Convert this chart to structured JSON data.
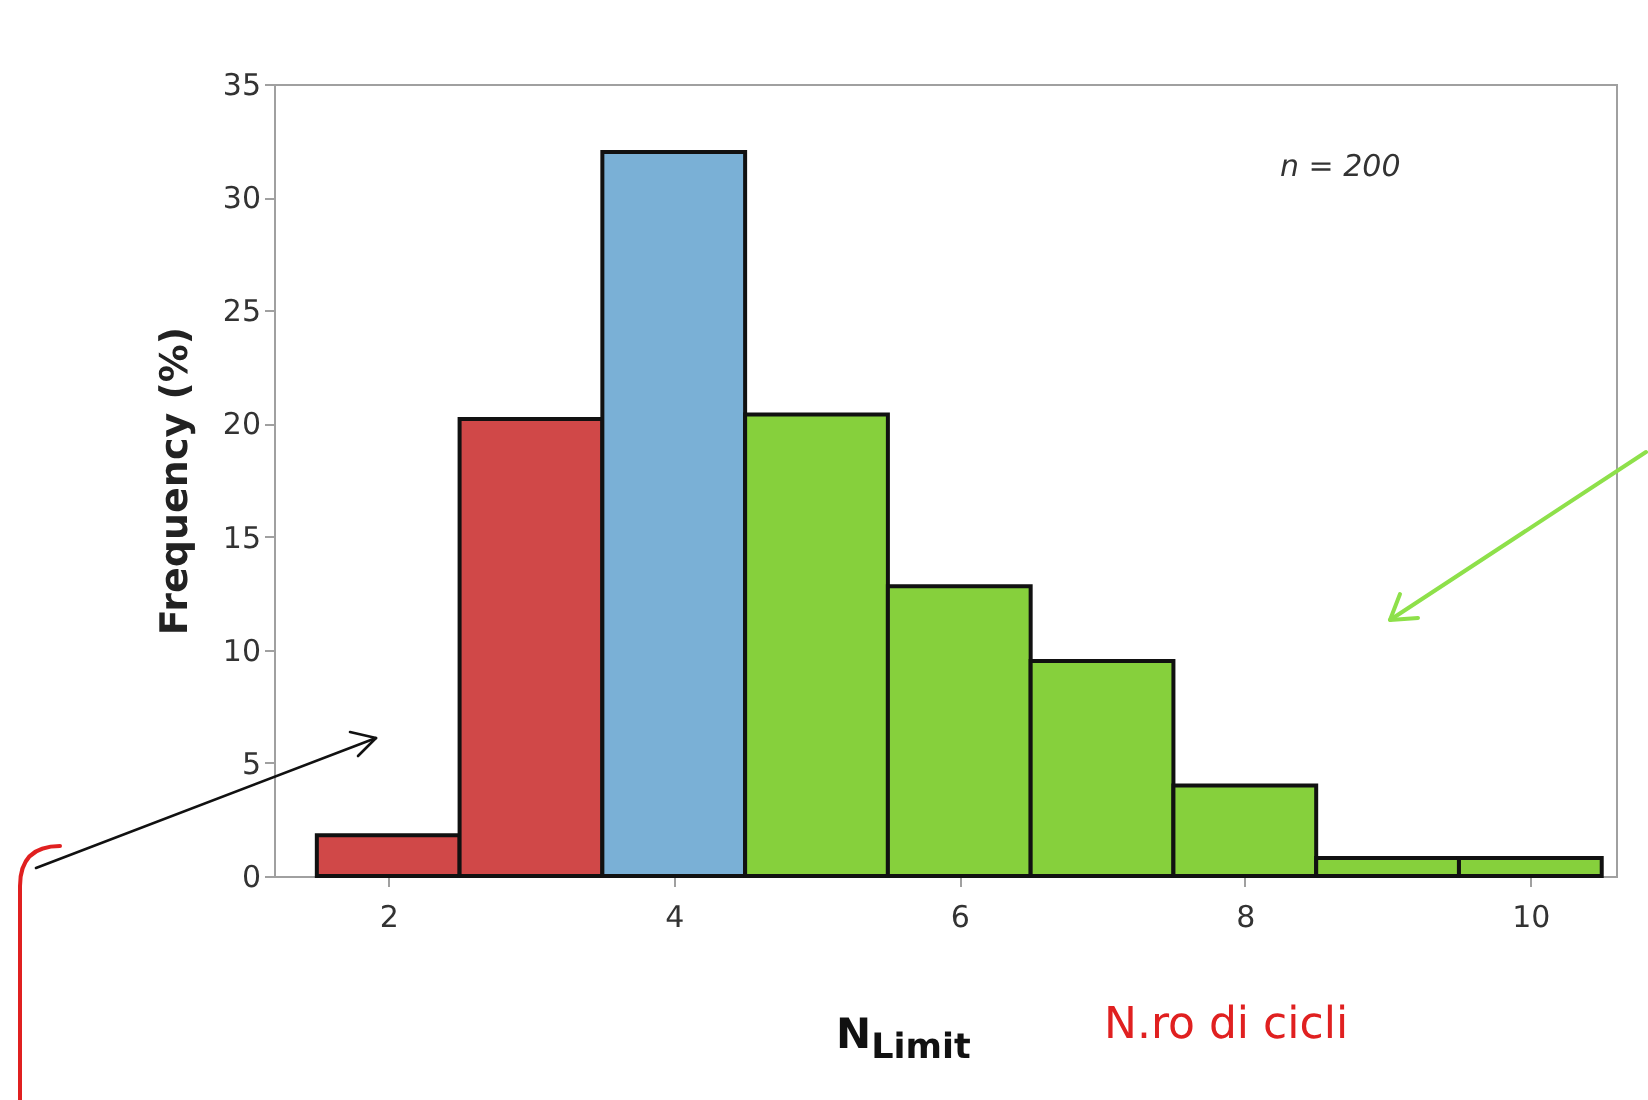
{
  "chart_data": {
    "type": "histogram",
    "xlabel": "N$_{Limit}$",
    "ylabel": "Frequency (%)",
    "bins": [
      1.5,
      2.5,
      3.5,
      4.5,
      5.5,
      6.5,
      7.5,
      8.5,
      9.5,
      10.5
    ],
    "values": [
      1.8,
      20.2,
      32,
      20.4,
      12.8,
      9.5,
      4.0,
      0.8,
      0.8
    ],
    "colors": [
      "#d04848",
      "#d04848",
      "#7ab0d6",
      "#86d03c",
      "#86d03c",
      "#86d03c",
      "#86d03c",
      "#86d03c",
      "#86d03c"
    ],
    "xlim": [
      1.2,
      10.6
    ],
    "xticks": [
      2,
      4,
      6,
      8,
      10
    ],
    "ylim": [
      0,
      35
    ],
    "yticks": [
      0,
      5,
      10,
      15,
      20,
      25,
      30,
      35
    ],
    "annotations": [
      "n = 200",
      "N.ro di cicli"
    ]
  }
}
